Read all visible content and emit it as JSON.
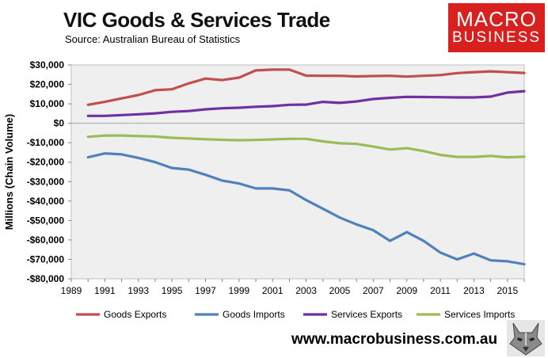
{
  "header": {
    "title": "VIC Goods & Services Trade",
    "subtitle": "Source:  Australian Bureau of Statistics"
  },
  "logo": {
    "line1": "MACRO",
    "line2": "BUSINESS",
    "bg": "#d8201f"
  },
  "footer": {
    "website": "www.macrobusiness.com.au",
    "mascot_icon": "wolf-icon"
  },
  "chart_data": {
    "type": "line",
    "ylabel": "Millions (Chain Volume)",
    "xlabel": "",
    "ylim": [
      -80000,
      30000
    ],
    "yticks": [
      30000,
      20000,
      10000,
      0,
      -10000,
      -20000,
      -30000,
      -40000,
      -50000,
      -60000,
      -70000,
      -80000
    ],
    "ytick_labels": [
      "$30,000",
      "$20,000",
      "$10,000",
      "$0",
      "-$10,000",
      "-$20,000",
      "-$30,000",
      "-$40,000",
      "-$50,000",
      "-$60,000",
      "-$70,000",
      "-$80,000"
    ],
    "xlim": [
      1989,
      2016
    ],
    "xticks": [
      1989,
      1991,
      1993,
      1995,
      1997,
      1999,
      2001,
      2003,
      2005,
      2007,
      2009,
      2011,
      2013,
      2015
    ],
    "x": [
      1990,
      1991,
      1992,
      1993,
      1994,
      1995,
      1996,
      1997,
      1998,
      1999,
      2000,
      2001,
      2002,
      2003,
      2004,
      2005,
      2006,
      2007,
      2008,
      2009,
      2010,
      2011,
      2012,
      2013,
      2014,
      2015,
      2016
    ],
    "grid": false,
    "plot_background": "#efefef",
    "legend_position": "bottom",
    "series": [
      {
        "name": "Goods Exports",
        "color": "#c0504d",
        "values": [
          9500,
          11000,
          12800,
          14500,
          17000,
          17500,
          20500,
          23000,
          22200,
          23500,
          27200,
          27600,
          27600,
          24500,
          24400,
          24400,
          24100,
          24300,
          24400,
          24000,
          24400,
          24800,
          25800,
          26300,
          26700,
          26300,
          25900
        ]
      },
      {
        "name": "Goods Imports",
        "color": "#4f81bd",
        "values": [
          -17500,
          -15500,
          -16000,
          -17800,
          -20000,
          -23000,
          -23800,
          -26500,
          -29500,
          -31000,
          -33500,
          -33500,
          -34500,
          -39500,
          -44000,
          -48500,
          -52000,
          -55000,
          -60500,
          -56000,
          -60500,
          -66500,
          -70000,
          -67000,
          -70500,
          -71000,
          -72500
        ]
      },
      {
        "name": "Services Exports",
        "color": "#7030a0",
        "values": [
          3800,
          3800,
          4200,
          4600,
          5100,
          5900,
          6300,
          7200,
          7700,
          8000,
          8500,
          8800,
          9500,
          9600,
          11000,
          10500,
          11200,
          12500,
          13100,
          13600,
          13500,
          13400,
          13300,
          13300,
          13700,
          15800,
          16500
        ]
      },
      {
        "name": "Services Imports",
        "color": "#9bbb59",
        "values": [
          -7000,
          -6300,
          -6300,
          -6600,
          -6800,
          -7500,
          -7800,
          -8200,
          -8500,
          -8700,
          -8600,
          -8300,
          -8000,
          -8000,
          -9300,
          -10300,
          -10600,
          -12000,
          -13500,
          -12800,
          -14300,
          -16300,
          -17300,
          -17300,
          -16800,
          -17500,
          -17200
        ]
      }
    ]
  }
}
